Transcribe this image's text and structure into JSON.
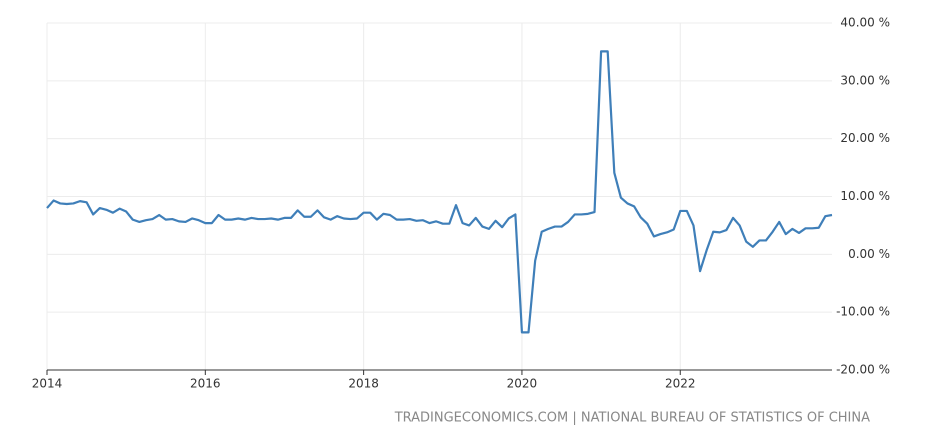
{
  "chart_data": {
    "type": "line",
    "source": "TRADINGECONOMICS.COM | NATIONAL BUREAU OF STATISTICS OF CHINA",
    "x": [
      2014,
      2014.083,
      2014.167,
      2014.25,
      2014.333,
      2014.417,
      2014.5,
      2014.583,
      2014.667,
      2014.75,
      2014.833,
      2014.917,
      2015,
      2015.083,
      2015.167,
      2015.25,
      2015.333,
      2015.417,
      2015.5,
      2015.583,
      2015.667,
      2015.75,
      2015.833,
      2015.917,
      2016,
      2016.083,
      2016.167,
      2016.25,
      2016.333,
      2016.417,
      2016.5,
      2016.583,
      2016.667,
      2016.75,
      2016.833,
      2016.917,
      2017,
      2017.083,
      2017.167,
      2017.25,
      2017.333,
      2017.417,
      2017.5,
      2017.583,
      2017.667,
      2017.75,
      2017.833,
      2017.917,
      2018,
      2018.083,
      2018.167,
      2018.25,
      2018.333,
      2018.417,
      2018.5,
      2018.583,
      2018.667,
      2018.75,
      2018.833,
      2018.917,
      2019,
      2019.083,
      2019.167,
      2019.25,
      2019.333,
      2019.417,
      2019.5,
      2019.583,
      2019.667,
      2019.75,
      2019.833,
      2019.917,
      2020,
      2020.083,
      2020.167,
      2020.25,
      2020.333,
      2020.417,
      2020.5,
      2020.583,
      2020.667,
      2020.75,
      2020.833,
      2020.917,
      2021,
      2021.083,
      2021.167,
      2021.25,
      2021.333,
      2021.417,
      2021.5,
      2021.583,
      2021.667,
      2021.75,
      2021.833,
      2021.917,
      2022,
      2022.083,
      2022.167,
      2022.25,
      2022.333,
      2022.417,
      2022.5,
      2022.583,
      2022.667,
      2022.75,
      2022.833,
      2022.917,
      2023,
      2023.083,
      2023.167,
      2023.25,
      2023.333,
      2023.417,
      2023.5,
      2023.583,
      2023.667,
      2023.75,
      2023.833,
      2023.917
    ],
    "values": [
      8.0,
      9.3,
      8.8,
      8.7,
      8.8,
      9.2,
      9.0,
      6.9,
      8.0,
      7.7,
      7.2,
      7.9,
      7.4,
      6.0,
      5.6,
      5.9,
      6.1,
      6.8,
      6.0,
      6.1,
      5.7,
      5.6,
      6.2,
      5.9,
      5.4,
      5.4,
      6.8,
      6.0,
      6.0,
      6.2,
      6.0,
      6.3,
      6.1,
      6.1,
      6.2,
      6.0,
      6.3,
      6.3,
      7.6,
      6.5,
      6.5,
      7.6,
      6.4,
      6.0,
      6.6,
      6.2,
      6.1,
      6.2,
      7.2,
      7.2,
      6.0,
      7.0,
      6.8,
      6.0,
      6.0,
      6.1,
      5.8,
      5.9,
      5.4,
      5.7,
      5.3,
      5.3,
      8.5,
      5.4,
      5.0,
      6.3,
      4.8,
      4.4,
      5.8,
      4.7,
      6.2,
      6.9,
      -13.5,
      -13.5,
      -1.1,
      3.9,
      4.4,
      4.8,
      4.8,
      5.6,
      6.9,
      6.9,
      7.0,
      7.3,
      35.1,
      35.1,
      14.1,
      9.8,
      8.8,
      8.3,
      6.4,
      5.3,
      3.1,
      3.5,
      3.8,
      4.3,
      7.5,
      7.5,
      5.0,
      -2.9,
      0.7,
      3.9,
      3.8,
      4.2,
      6.3,
      5.0,
      2.2,
      1.3,
      2.4,
      2.4,
      3.9,
      5.6,
      3.5,
      4.4,
      3.7,
      4.5,
      4.5,
      4.6,
      6.6,
      6.8
    ],
    "color": "#3f7fb9",
    "xlim": [
      2014,
      2023.917
    ],
    "xticks": [
      2014,
      2016,
      2018,
      2020,
      2022
    ],
    "ylim": [
      -20,
      40
    ],
    "yticks": [
      {
        "value": -20,
        "label": "-20.00 %"
      },
      {
        "value": -10,
        "label": "-10.00 %"
      },
      {
        "value": 0,
        "label": "0.00 %"
      },
      {
        "value": 10,
        "label": "10.00 %"
      },
      {
        "value": 20,
        "label": "20.00 %"
      },
      {
        "value": 30,
        "label": "30.00 %"
      },
      {
        "value": 40,
        "label": "40.00 %"
      }
    ],
    "grid": true
  }
}
